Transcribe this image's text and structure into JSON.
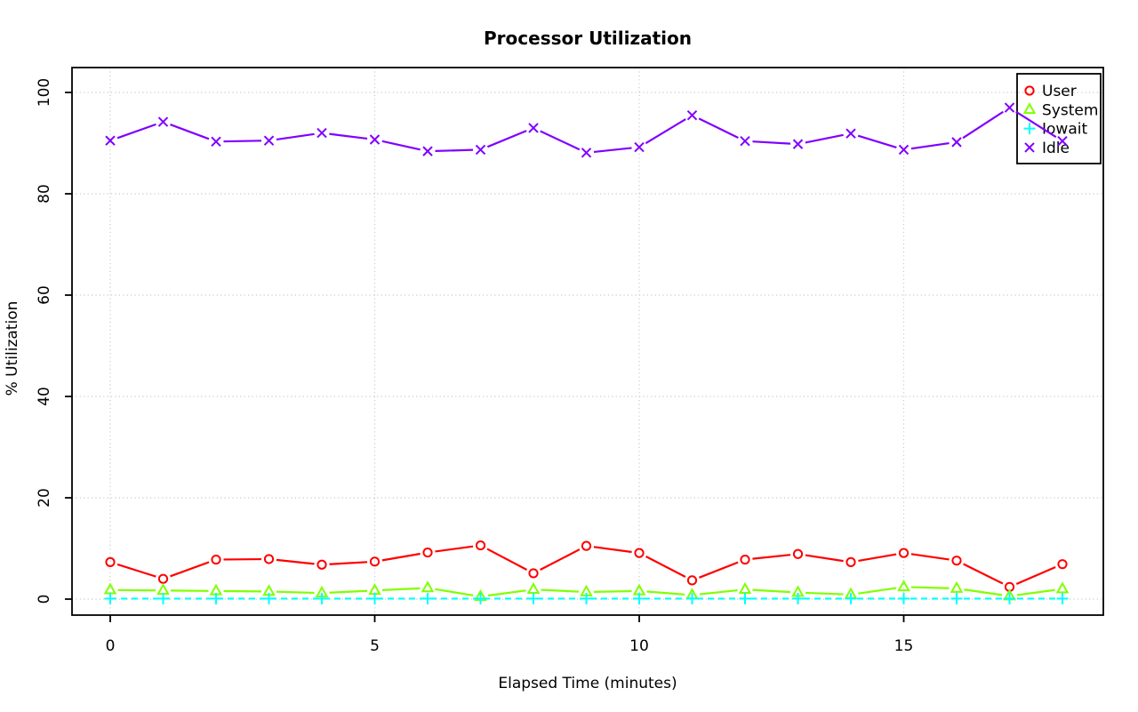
{
  "chart_data": {
    "type": "line",
    "title": "Processor Utilization",
    "xlabel": "Elapsed Time (minutes)",
    "ylabel": "% Utilization",
    "x": [
      0,
      1,
      2,
      3,
      4,
      5,
      6,
      7,
      8,
      9,
      10,
      11,
      12,
      13,
      14,
      15,
      16,
      17,
      18
    ],
    "series": [
      {
        "name": "User",
        "color": "#FF0000",
        "marker": "circle",
        "line": "solid",
        "values": [
          7.3,
          4.0,
          7.8,
          7.9,
          6.8,
          7.4,
          9.2,
          10.6,
          5.1,
          10.5,
          9.1,
          3.7,
          7.8,
          8.9,
          7.3,
          9.1,
          7.6,
          2.4,
          6.9
        ]
      },
      {
        "name": "System",
        "color": "#80FF00",
        "marker": "triangle",
        "line": "solid",
        "values": [
          1.8,
          1.7,
          1.6,
          1.5,
          1.2,
          1.7,
          2.2,
          0.5,
          1.9,
          1.4,
          1.6,
          0.8,
          1.9,
          1.3,
          0.9,
          2.4,
          2.1,
          0.6,
          2.0
        ]
      },
      {
        "name": "Iowait",
        "color": "#00FFFF",
        "marker": "plus",
        "line": "dashed",
        "values": [
          0.1,
          0.1,
          0.1,
          0.1,
          0.1,
          0.1,
          0.1,
          0.1,
          0.1,
          0.1,
          0.1,
          0.1,
          0.1,
          0.1,
          0.1,
          0.1,
          0.1,
          0.1,
          0.1
        ]
      },
      {
        "name": "Idle",
        "color": "#8000FF",
        "marker": "x",
        "line": "solid",
        "values": [
          90.5,
          94.2,
          90.3,
          90.5,
          92.0,
          90.7,
          88.4,
          88.7,
          93.0,
          88.1,
          89.2,
          95.5,
          90.4,
          89.8,
          91.9,
          88.7,
          90.2,
          97.0,
          90.4
        ]
      }
    ],
    "xticks": [
      0,
      5,
      10,
      15
    ],
    "yticks": [
      0,
      20,
      40,
      60,
      80,
      100
    ],
    "xlim": [
      0,
      18
    ],
    "ylim": [
      0,
      100
    ],
    "grid": true,
    "grid_color": "#C9C9C9",
    "axis_color": "#000000",
    "legend_position": "top-right",
    "legend": [
      "User",
      "System",
      "Iowait",
      "Idle"
    ]
  }
}
